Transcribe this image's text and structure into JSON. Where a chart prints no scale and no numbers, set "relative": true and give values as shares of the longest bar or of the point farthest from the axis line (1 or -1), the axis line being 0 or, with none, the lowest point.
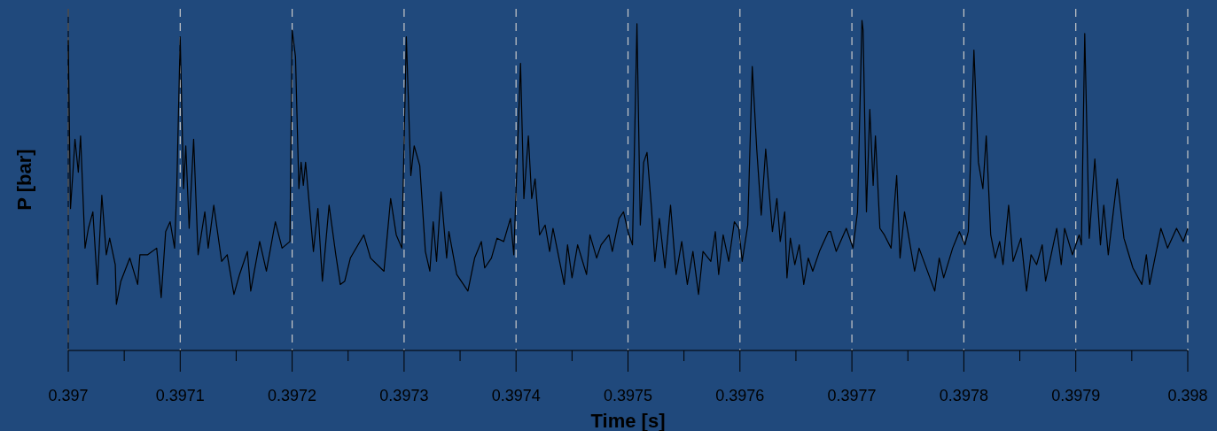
{
  "chart_data": {
    "type": "line",
    "xlabel": "Time [s]",
    "ylabel": "P [bar]",
    "relative": true,
    "grid": "x",
    "marker": "none",
    "line_style": "solid",
    "xlim": [
      0.397,
      0.398
    ],
    "xticks": [
      0.397,
      {
        "value": 0.39705,
        "label": null
      },
      0.3971,
      {
        "value": 0.39715,
        "label": null
      },
      0.3972,
      {
        "value": 0.39725,
        "label": null
      },
      0.3973,
      {
        "value": 0.39735,
        "label": null
      },
      0.3974,
      {
        "value": 0.39745,
        "label": null
      },
      0.3975,
      {
        "value": 0.39755,
        "label": null
      },
      0.3976,
      {
        "value": 0.39765,
        "label": null
      },
      0.3977,
      {
        "value": 0.39775,
        "label": null
      },
      0.3978,
      {
        "value": 0.39785,
        "label": null
      },
      0.3979,
      {
        "value": 0.39795,
        "label": null
      },
      0.398
    ],
    "series": [
      {
        "color": "#000000",
        "x": [
          0.397,
          0.397002,
          0.397004,
          0.397006,
          0.397009,
          0.397011,
          0.397015,
          0.397018,
          0.397022,
          0.397026,
          0.39703,
          0.397034,
          0.397037,
          0.397042,
          0.397043,
          0.397047,
          0.397055,
          0.397062,
          0.397064,
          0.397071,
          0.397079,
          0.397083,
          0.397087,
          0.397091,
          0.397095,
          0.397097,
          0.3971,
          0.397103,
          0.397105,
          0.397108,
          0.397112,
          0.397116,
          0.397122,
          0.397125,
          0.39713,
          0.397137,
          0.397142,
          0.397148,
          0.397153,
          0.39716,
          0.397163,
          0.397171,
          0.397177,
          0.397185,
          0.397191,
          0.397198,
          0.3972,
          0.397203,
          0.397206,
          0.397208,
          0.39721,
          0.397212,
          0.397219,
          0.397223,
          0.397227,
          0.397233,
          0.397239,
          0.397243,
          0.397247,
          0.397252,
          0.397264,
          0.39727,
          0.397282,
          0.397288,
          0.397293,
          0.397298,
          0.397302,
          0.397306,
          0.397309,
          0.397314,
          0.397319,
          0.397323,
          0.397326,
          0.397329,
          0.397333,
          0.397338,
          0.39734,
          0.397347,
          0.397357,
          0.397363,
          0.397369,
          0.397372,
          0.397378,
          0.397383,
          0.397389,
          0.397395,
          0.397398,
          0.397404,
          0.397407,
          0.397411,
          0.397414,
          0.397417,
          0.397421,
          0.397426,
          0.39743,
          0.397433,
          0.397443,
          0.397446,
          0.39745,
          0.397455,
          0.397463,
          0.397466,
          0.397472,
          0.397476,
          0.397483,
          0.397486,
          0.397492,
          0.397496,
          0.3975,
          0.397504,
          0.397508,
          0.397511,
          0.397514,
          0.397517,
          0.397521,
          0.397524,
          0.397528,
          0.397533,
          0.397538,
          0.397543,
          0.397548,
          0.397553,
          0.397558,
          0.397563,
          0.397567,
          0.397574,
          0.397578,
          0.397581,
          0.397585,
          0.39759,
          0.397595,
          0.397599,
          0.397602,
          0.397607,
          0.397611,
          0.397615,
          0.397619,
          0.397623,
          0.397629,
          0.397633,
          0.397636,
          0.39764,
          0.397642,
          0.397645,
          0.397649,
          0.397653,
          0.397657,
          0.397661,
          0.397665,
          0.397671,
          0.397679,
          0.397681,
          0.397686,
          0.397695,
          0.397701,
          0.397705,
          0.397709,
          0.39771,
          0.397713,
          0.397716,
          0.397719,
          0.397721,
          0.397725,
          0.397729,
          0.397735,
          0.39774,
          0.397743,
          0.397747,
          0.397756,
          0.39776,
          0.397774,
          0.397778,
          0.397782,
          0.39779,
          0.397796,
          0.397801,
          0.397804,
          0.397809,
          0.397813,
          0.397817,
          0.39782,
          0.397824,
          0.397828,
          0.397832,
          0.397835,
          0.39784,
          0.397844,
          0.397851,
          0.397856,
          0.39786,
          0.397865,
          0.39787,
          0.397873,
          0.397883,
          0.397887,
          0.39789,
          0.397897,
          0.397903,
          0.397905,
          0.397908,
          0.397912,
          0.397917,
          0.397922,
          0.397925,
          0.397929,
          0.397937,
          0.397943,
          0.397951,
          0.397959,
          0.397963,
          0.397966,
          0.397976,
          0.397982,
          0.39799,
          0.397996,
          0.398
        ],
        "values": [
          0.94,
          0.43,
          0.53,
          0.64,
          0.54,
          0.65,
          0.31,
          0.37,
          0.42,
          0.2,
          0.47,
          0.29,
          0.34,
          0.26,
          0.14,
          0.21,
          0.28,
          0.2,
          0.29,
          0.29,
          0.31,
          0.16,
          0.36,
          0.39,
          0.31,
          0.5,
          0.95,
          0.49,
          0.62,
          0.37,
          0.64,
          0.29,
          0.42,
          0.31,
          0.44,
          0.27,
          0.29,
          0.17,
          0.23,
          0.3,
          0.18,
          0.33,
          0.24,
          0.39,
          0.31,
          0.33,
          0.97,
          0.89,
          0.49,
          0.57,
          0.5,
          0.57,
          0.3,
          0.43,
          0.21,
          0.44,
          0.29,
          0.2,
          0.21,
          0.28,
          0.35,
          0.28,
          0.24,
          0.46,
          0.35,
          0.31,
          0.95,
          0.53,
          0.62,
          0.56,
          0.3,
          0.24,
          0.39,
          0.27,
          0.48,
          0.28,
          0.36,
          0.23,
          0.18,
          0.28,
          0.33,
          0.25,
          0.28,
          0.34,
          0.33,
          0.4,
          0.29,
          0.87,
          0.46,
          0.65,
          0.46,
          0.52,
          0.35,
          0.38,
          0.3,
          0.37,
          0.2,
          0.32,
          0.22,
          0.32,
          0.23,
          0.35,
          0.28,
          0.32,
          0.35,
          0.3,
          0.4,
          0.42,
          0.36,
          0.32,
          0.99,
          0.38,
          0.57,
          0.6,
          0.43,
          0.27,
          0.4,
          0.25,
          0.44,
          0.23,
          0.33,
          0.2,
          0.3,
          0.17,
          0.3,
          0.27,
          0.36,
          0.23,
          0.35,
          0.27,
          0.39,
          0.37,
          0.27,
          0.38,
          0.86,
          0.61,
          0.41,
          0.61,
          0.36,
          0.46,
          0.33,
          0.42,
          0.22,
          0.34,
          0.26,
          0.32,
          0.2,
          0.28,
          0.24,
          0.3,
          0.36,
          0.36,
          0.3,
          0.37,
          0.31,
          0.42,
          1.0,
          0.97,
          0.42,
          0.73,
          0.5,
          0.65,
          0.37,
          0.35,
          0.31,
          0.53,
          0.28,
          0.42,
          0.24,
          0.31,
          0.18,
          0.28,
          0.22,
          0.31,
          0.36,
          0.32,
          0.36,
          0.91,
          0.57,
          0.49,
          0.65,
          0.35,
          0.28,
          0.33,
          0.26,
          0.44,
          0.27,
          0.34,
          0.18,
          0.29,
          0.26,
          0.32,
          0.21,
          0.37,
          0.26,
          0.37,
          0.29,
          0.35,
          0.32,
          0.96,
          0.34,
          0.58,
          0.32,
          0.44,
          0.29,
          0.52,
          0.34,
          0.25,
          0.2,
          0.29,
          0.2,
          0.37,
          0.31,
          0.37,
          0.33,
          0.37
        ]
      }
    ]
  }
}
